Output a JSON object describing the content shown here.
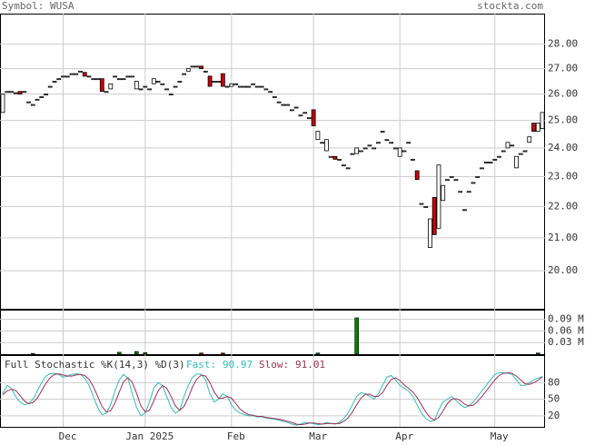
{
  "chart_data": [
    {
      "type": "candlestick",
      "title": "Symbol: WUSA",
      "watermark": "stockta.com",
      "categories": [
        null,
        null,
        null,
        null,
        null,
        null,
        null,
        null,
        null,
        null,
        null,
        null,
        null,
        null,
        "Dec",
        null,
        null,
        null,
        null,
        null,
        null,
        null,
        null,
        null,
        null,
        null,
        null,
        null,
        null,
        null,
        null,
        null,
        null,
        "Jan 2025",
        null,
        null,
        null,
        null,
        null,
        null,
        null,
        null,
        null,
        null,
        null,
        null,
        null,
        null,
        null,
        null,
        null,
        null,
        null,
        "Feb",
        null,
        null,
        null,
        null,
        null,
        null,
        null,
        null,
        null,
        null,
        null,
        null,
        null,
        null,
        null,
        null,
        null,
        null,
        "Mar",
        null,
        null,
        null,
        null,
        null,
        null,
        null,
        null,
        null,
        null,
        null,
        null,
        null,
        null,
        null,
        null,
        null,
        null,
        null,
        "Apr",
        null,
        null,
        null,
        null,
        null,
        null,
        null,
        null,
        null,
        null,
        null,
        null,
        null,
        null,
        null,
        null,
        null,
        null,
        null,
        null,
        null,
        "May",
        null,
        null,
        null,
        null,
        null,
        null,
        null,
        null,
        null,
        null,
        null
      ],
      "open": [
        25.3,
        26.1,
        26.1,
        26.05,
        26.1,
        26.1,
        25.7,
        25.6,
        25.8,
        25.9,
        26.0,
        26.3,
        26.5,
        26.6,
        26.7,
        26.7,
        26.8,
        26.8,
        26.9,
        26.85,
        26.7,
        26.6,
        26.6,
        26.6,
        26.1,
        26.2,
        26.7,
        26.6,
        26.6,
        26.7,
        26.7,
        26.2,
        26.2,
        26.3,
        26.2,
        26.4,
        26.5,
        26.4,
        26.2,
        26.0,
        26.3,
        26.5,
        26.8,
        26.9,
        27.1,
        27.1,
        27.1,
        26.9,
        26.7,
        26.5,
        26.5,
        26.8,
        26.3,
        26.3,
        26.4,
        26.3,
        26.3,
        26.3,
        26.4,
        26.3,
        26.3,
        26.2,
        26.1,
        25.9,
        25.7,
        25.6,
        25.6,
        25.4,
        25.5,
        25.2,
        25.3,
        25.1,
        25.4,
        24.3,
        24.2,
        23.9,
        23.7,
        23.7,
        23.6,
        23.4,
        23.3,
        23.8,
        23.8,
        23.9,
        24.0,
        24.1,
        24.0,
        24.2,
        24.6,
        24.3,
        24.2,
        24.0,
        23.7,
        23.9,
        24.2,
        23.6,
        23.2,
        22.1,
        22.0,
        20.7,
        22.3,
        21.3,
        22.2,
        22.9,
        23.0,
        22.9,
        22.5,
        21.9,
        22.5,
        22.8,
        23.0,
        23.3,
        23.5,
        23.5,
        23.6,
        23.7,
        23.9,
        24.0,
        24.1,
        23.3,
        23.8,
        23.9,
        24.2,
        24.9,
        24.6,
        24.7
      ],
      "close": [
        26.0,
        26.1,
        26.1,
        26.05,
        26.0,
        26.1,
        25.7,
        25.6,
        25.8,
        25.9,
        26.0,
        26.3,
        26.5,
        26.6,
        26.7,
        26.7,
        26.8,
        26.8,
        26.9,
        26.7,
        26.7,
        26.6,
        26.6,
        26.1,
        26.1,
        26.4,
        26.7,
        26.6,
        26.6,
        26.7,
        26.7,
        26.5,
        26.2,
        26.3,
        26.2,
        26.6,
        26.5,
        26.4,
        26.2,
        26.0,
        26.3,
        26.5,
        26.8,
        27.0,
        27.1,
        27.1,
        27.0,
        26.9,
        26.3,
        26.5,
        26.5,
        26.3,
        26.3,
        26.4,
        26.4,
        26.3,
        26.3,
        26.3,
        26.4,
        26.3,
        26.3,
        26.2,
        26.1,
        25.9,
        25.7,
        25.6,
        25.6,
        25.4,
        25.5,
        25.2,
        25.3,
        25.1,
        24.8,
        24.6,
        24.2,
        24.3,
        23.7,
        23.6,
        23.6,
        23.4,
        23.3,
        23.8,
        24.0,
        23.9,
        24.0,
        24.1,
        24.0,
        24.2,
        24.6,
        24.3,
        24.2,
        24.0,
        24.0,
        23.9,
        24.2,
        23.6,
        22.9,
        22.1,
        22.0,
        21.6,
        21.1,
        23.4,
        22.7,
        22.9,
        23.0,
        22.9,
        22.5,
        21.9,
        22.5,
        22.8,
        23.0,
        23.3,
        23.5,
        23.5,
        23.6,
        23.7,
        23.9,
        24.2,
        24.1,
        23.7,
        23.8,
        23.9,
        24.4,
        24.6,
        24.9,
        25.3
      ],
      "up_color": "#ffffff",
      "down_color": "#cc0000",
      "log": true,
      "grid": true,
      "ylim": [
        18.9,
        29.3
      ],
      "yticks": [
        {
          "value": 20,
          "label": "20.00"
        },
        {
          "value": 21,
          "label": "21.00"
        },
        {
          "value": 22,
          "label": "22.00"
        },
        {
          "value": 23,
          "label": "23.00"
        },
        {
          "value": 24,
          "label": "24.00"
        },
        {
          "value": 25,
          "label": "25.00"
        },
        {
          "value": 26,
          "label": "26.00"
        },
        {
          "value": 27,
          "label": "27.00"
        },
        {
          "value": 28,
          "label": "28.00"
        }
      ]
    },
    {
      "type": "bar",
      "values": [
        0,
        0,
        0,
        0,
        0,
        0,
        0,
        2000,
        0,
        0,
        0,
        0,
        0,
        0,
        0,
        0,
        0,
        0,
        0,
        0,
        0,
        0,
        0,
        0,
        0,
        0,
        0,
        5000,
        0,
        0,
        0,
        7000,
        0,
        4000,
        0,
        0,
        0,
        0,
        0,
        0,
        0,
        0,
        0,
        0,
        0,
        0,
        3000,
        0,
        0,
        0,
        0,
        3000,
        0,
        0,
        0,
        0,
        0,
        0,
        0,
        0,
        0,
        0,
        0,
        0,
        0,
        0,
        0,
        0,
        0,
        0,
        0,
        0,
        0,
        3000,
        0,
        0,
        0,
        0,
        0,
        0,
        0,
        0,
        94000,
        0,
        0,
        0,
        0,
        0,
        0,
        0,
        0,
        0,
        0,
        0,
        0,
        0,
        0,
        0,
        0,
        0,
        0,
        0,
        0,
        0,
        0,
        0,
        0,
        0,
        0,
        0,
        0,
        0,
        0,
        0,
        0,
        0,
        0,
        0,
        0,
        0,
        0,
        0,
        0,
        0,
        3000,
        0
      ],
      "up_color": "#008000",
      "down_color": "#cc0000",
      "ylim": [
        0,
        115000
      ],
      "yticks": [
        {
          "value": 30000,
          "label": "0.03 M"
        },
        {
          "value": 60000,
          "label": "0.06 M"
        },
        {
          "value": 90000,
          "label": "0.09 M"
        }
      ]
    },
    {
      "type": "line",
      "title": "Full Stochastic %K(14,3) %D(3)",
      "ylim": [
        0,
        130
      ],
      "yticks": [
        20,
        50,
        80
      ],
      "series": [
        {
          "name": "Fast:",
          "color": "#33bbbb",
          "values": [
            60,
            75,
            70,
            55,
            45,
            40,
            42,
            50,
            65,
            80,
            92,
            96,
            97,
            95,
            90,
            92,
            95,
            96,
            95,
            88,
            75,
            55,
            35,
            22,
            25,
            40,
            65,
            85,
            95,
            88,
            60,
            35,
            20,
            25,
            45,
            70,
            80,
            75,
            55,
            35,
            25,
            30,
            55,
            75,
            90,
            96,
            95,
            85,
            60,
            45,
            50,
            60,
            55,
            40,
            30,
            25,
            22,
            20,
            20,
            18,
            18,
            16,
            15,
            14,
            12,
            10,
            8,
            5,
            3,
            5,
            8,
            7,
            6,
            4,
            5,
            8,
            6,
            5,
            8,
            15,
            25,
            40,
            55,
            62,
            60,
            55,
            50,
            60,
            75,
            90,
            93,
            85,
            75,
            70,
            65,
            55,
            40,
            25,
            15,
            10,
            12,
            30,
            45,
            50,
            55,
            48,
            40,
            35,
            38,
            45,
            55,
            65,
            75,
            85,
            95,
            98,
            98,
            97,
            95,
            85,
            75,
            75,
            80,
            85,
            88,
            90.97
          ]
        },
        {
          "name": "Slow:",
          "color": "#993355",
          "values": [
            58,
            65,
            68,
            66,
            57,
            47,
            42,
            44,
            52,
            65,
            79,
            89,
            95,
            96,
            94,
            92,
            92,
            94,
            95,
            93,
            86,
            73,
            55,
            37,
            27,
            29,
            43,
            63,
            82,
            89,
            81,
            61,
            38,
            27,
            30,
            47,
            65,
            75,
            70,
            55,
            38,
            30,
            37,
            53,
            73,
            87,
            94,
            92,
            80,
            63,
            52,
            52,
            55,
            52,
            42,
            32,
            26,
            22,
            21,
            19,
            19,
            17,
            16,
            15,
            14,
            12,
            10,
            8,
            5,
            4,
            5,
            7,
            7,
            6,
            5,
            6,
            6,
            6,
            6,
            10,
            16,
            27,
            40,
            52,
            59,
            59,
            55,
            55,
            62,
            75,
            86,
            89,
            84,
            76,
            70,
            63,
            53,
            40,
            27,
            17,
            12,
            17,
            29,
            42,
            50,
            51,
            48,
            41,
            38,
            39,
            46,
            55,
            65,
            75,
            85,
            93,
            97,
            98,
            97,
            92,
            85,
            78,
            77,
            80,
            84,
            91.01
          ]
        }
      ]
    }
  ]
}
